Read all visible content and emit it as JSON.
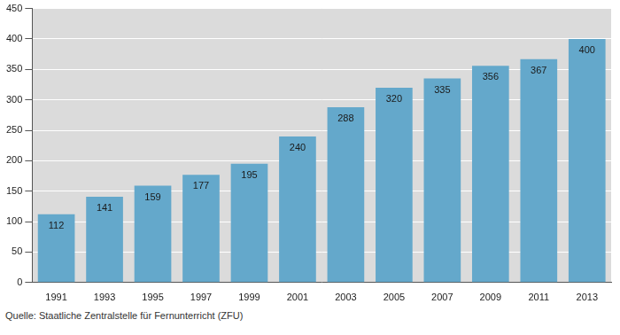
{
  "chart_data": {
    "type": "bar",
    "categories": [
      "1991",
      "1993",
      "1995",
      "1997",
      "1999",
      "2001",
      "2003",
      "2005",
      "2007",
      "2009",
      "2011",
      "2013"
    ],
    "values": [
      112,
      141,
      159,
      177,
      195,
      240,
      288,
      320,
      335,
      356,
      367,
      400
    ],
    "color": "#64a8cb",
    "ylim": [
      0,
      450
    ],
    "yticks": [
      0,
      50,
      100,
      150,
      200,
      250,
      300,
      350,
      400,
      450
    ],
    "grid": true,
    "data_labels": true,
    "source": "Quelle: Staatliche Zentralstelle für Fernunterricht (ZFU)"
  }
}
